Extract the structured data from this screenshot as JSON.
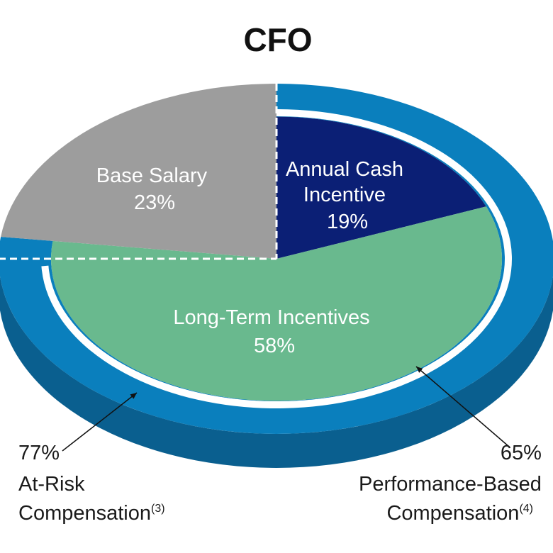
{
  "chart_data": {
    "type": "pie",
    "title": "CFO",
    "slices": [
      {
        "label": "Annual Cash Incentive",
        "label_lines": [
          "Annual Cash",
          "Incentive"
        ],
        "value": 19,
        "value_text": "19%",
        "color": "#0b1f75"
      },
      {
        "label": "Long-Term Incentives",
        "label_lines": [
          "Long-Term Incentives"
        ],
        "value": 58,
        "value_text": "58%",
        "color": "#69b98e"
      },
      {
        "label": "Base Salary",
        "label_lines": [
          "Base Salary"
        ],
        "value": 23,
        "value_text": "23%",
        "color": "#9d9d9d"
      }
    ],
    "ring_color": "#0a7fbd",
    "ring_side_color": "#0a5f8f",
    "callouts": [
      {
        "value_text": "77%",
        "lines": [
          "At-Risk",
          "Compensation"
        ],
        "footnote": "(3)",
        "covers": [
          "Annual Cash Incentive",
          "Long-Term Incentives"
        ],
        "side": "left"
      },
      {
        "value_text": "65%",
        "lines": [
          "Performance-Based",
          "Compensation"
        ],
        "footnote": "(4)",
        "covers": [
          "Annual Cash Incentive",
          "Long-Term Incentives"
        ],
        "side": "right"
      }
    ]
  }
}
